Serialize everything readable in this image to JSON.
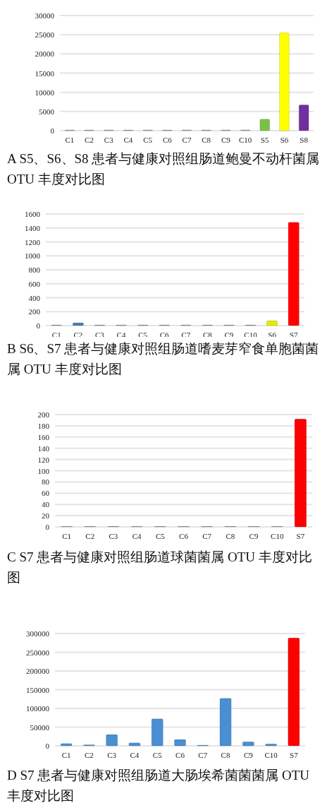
{
  "chart_data": [
    {
      "type": "bar",
      "title": "A S5、S6、S8 患者与健康对照组肠道鲍曼不动杆菌属 OTU 丰度对比图",
      "categories": [
        "C1",
        "C2",
        "C3",
        "C4",
        "C5",
        "C6",
        "C7",
        "C8",
        "C9",
        "C10",
        "S5",
        "S6",
        "S8"
      ],
      "values": [
        200,
        200,
        200,
        200,
        200,
        200,
        200,
        200,
        200,
        200,
        3000,
        25500,
        6700
      ],
      "colors": [
        "#7f9cb8",
        "#7f9cb8",
        "#7f9cb8",
        "#7f9cb8",
        "#7f9cb8",
        "#7f9cb8",
        "#7f9cb8",
        "#7f9cb8",
        "#7f9cb8",
        "#7f9cb8",
        "#7ac143",
        "#ffff00",
        "#7030a0"
      ],
      "ylim": [
        0,
        30000
      ],
      "yticks": [
        0,
        5000,
        10000,
        15000,
        20000,
        25000,
        30000
      ],
      "grid": "y"
    },
    {
      "type": "bar",
      "title": "B S6、S7 患者与健康对照组肠道嗜麦芽窄食单胞菌菌属 OTU 丰度对比图",
      "categories": [
        "C1",
        "C2",
        "C3",
        "C4",
        "C5",
        "C6",
        "C7",
        "C8",
        "C9",
        "C10",
        "S6",
        "S7"
      ],
      "values": [
        10,
        40,
        10,
        10,
        10,
        10,
        10,
        10,
        10,
        10,
        70,
        1480
      ],
      "colors": [
        "#7f9cb8",
        "#4a7fb5",
        "#7f9cb8",
        "#7f9cb8",
        "#7f9cb8",
        "#7f9cb8",
        "#7f9cb8",
        "#7f9cb8",
        "#7f9cb8",
        "#7f9cb8",
        "#e8e800",
        "#ff0000"
      ],
      "ylim": [
        0,
        1600
      ],
      "yticks": [
        0,
        200,
        400,
        600,
        800,
        1000,
        1200,
        1400,
        1600
      ],
      "grid": "y"
    },
    {
      "type": "bar",
      "title": "C S7 患者与健康对照组肠道球菌菌属 OTU 丰度对比图",
      "categories": [
        "C1",
        "C2",
        "C3",
        "C4",
        "C5",
        "C6",
        "C7",
        "C8",
        "C9",
        "C10",
        "S7"
      ],
      "values": [
        1,
        1,
        1,
        1,
        1,
        1,
        1,
        1,
        1,
        1,
        192
      ],
      "colors": [
        "#6f8ca8",
        "#6f8ca8",
        "#6f8ca8",
        "#6f8ca8",
        "#6f8ca8",
        "#6f8ca8",
        "#6f8ca8",
        "#6f8ca8",
        "#6f8ca8",
        "#6f8ca8",
        "#ff0000"
      ],
      "ylim": [
        0,
        200
      ],
      "yticks": [
        0,
        20,
        40,
        60,
        80,
        100,
        120,
        140,
        160,
        180,
        200
      ],
      "grid": "y"
    },
    {
      "type": "bar",
      "title": "D S7 患者与健康对照组肠道大肠埃希菌菌菌属 OTU 丰度对比图",
      "categories": [
        "C1",
        "C2",
        "C3",
        "C4",
        "C5",
        "C6",
        "C7",
        "C8",
        "C9",
        "C10",
        "S7"
      ],
      "values": [
        6000,
        3000,
        30000,
        8000,
        72000,
        17000,
        2000,
        127000,
        11000,
        5000,
        288000
      ],
      "colors": [
        "#4a8fd4",
        "#4a8fd4",
        "#4a8fd4",
        "#4a8fd4",
        "#4a8fd4",
        "#4a8fd4",
        "#4a8fd4",
        "#4a8fd4",
        "#4a8fd4",
        "#4a8fd4",
        "#ff0000"
      ],
      "ylim": [
        0,
        300000
      ],
      "yticks": [
        0,
        50000,
        100000,
        150000,
        200000,
        250000,
        300000
      ],
      "grid": "y"
    }
  ]
}
